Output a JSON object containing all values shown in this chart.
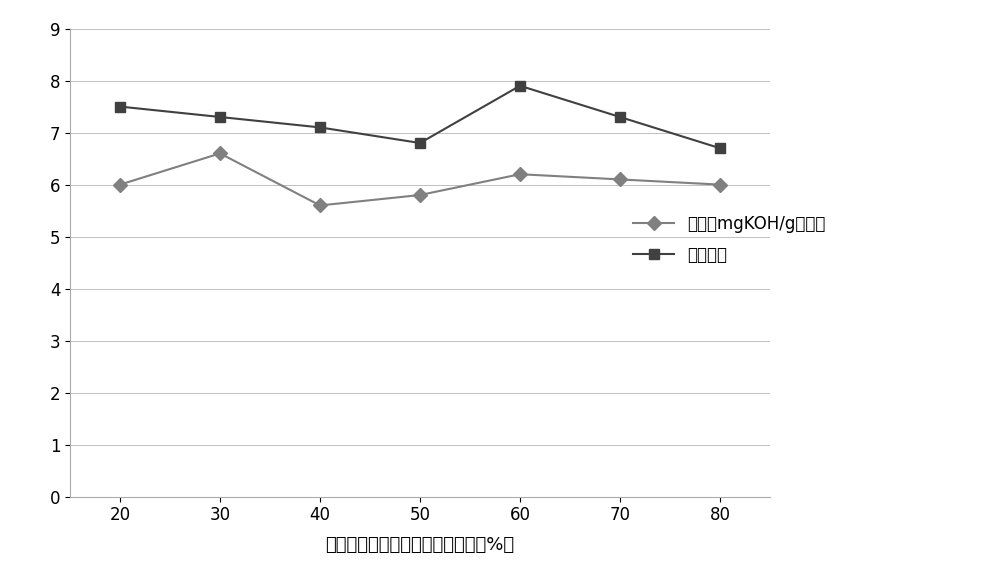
{
  "x": [
    20,
    30,
    40,
    50,
    60,
    70,
    80
  ],
  "acid_value": [
    6.0,
    6.6,
    5.6,
    5.8,
    6.2,
    6.1,
    6.0
  ],
  "aroma_score": [
    7.5,
    7.3,
    7.1,
    6.8,
    7.9,
    7.3,
    6.7
  ],
  "acid_label": "酸价（mgKOH/g脂肪）",
  "aroma_label": "香气评分",
  "xlabel": "棕榈油在底物中的重量百分含量（%）",
  "ylim": [
    0,
    9
  ],
  "yticks": [
    0,
    1,
    2,
    3,
    4,
    5,
    6,
    7,
    8,
    9
  ],
  "xticks": [
    20,
    30,
    40,
    50,
    60,
    70,
    80
  ],
  "acid_color": "#808080",
  "aroma_color": "#404040",
  "background_color": "#ffffff",
  "grid_color": "#c0c0c0",
  "marker_acid": "D",
  "marker_aroma": "s",
  "line_width": 1.5,
  "marker_size": 7,
  "font_size_label": 13,
  "font_size_tick": 12,
  "font_size_legend": 12
}
